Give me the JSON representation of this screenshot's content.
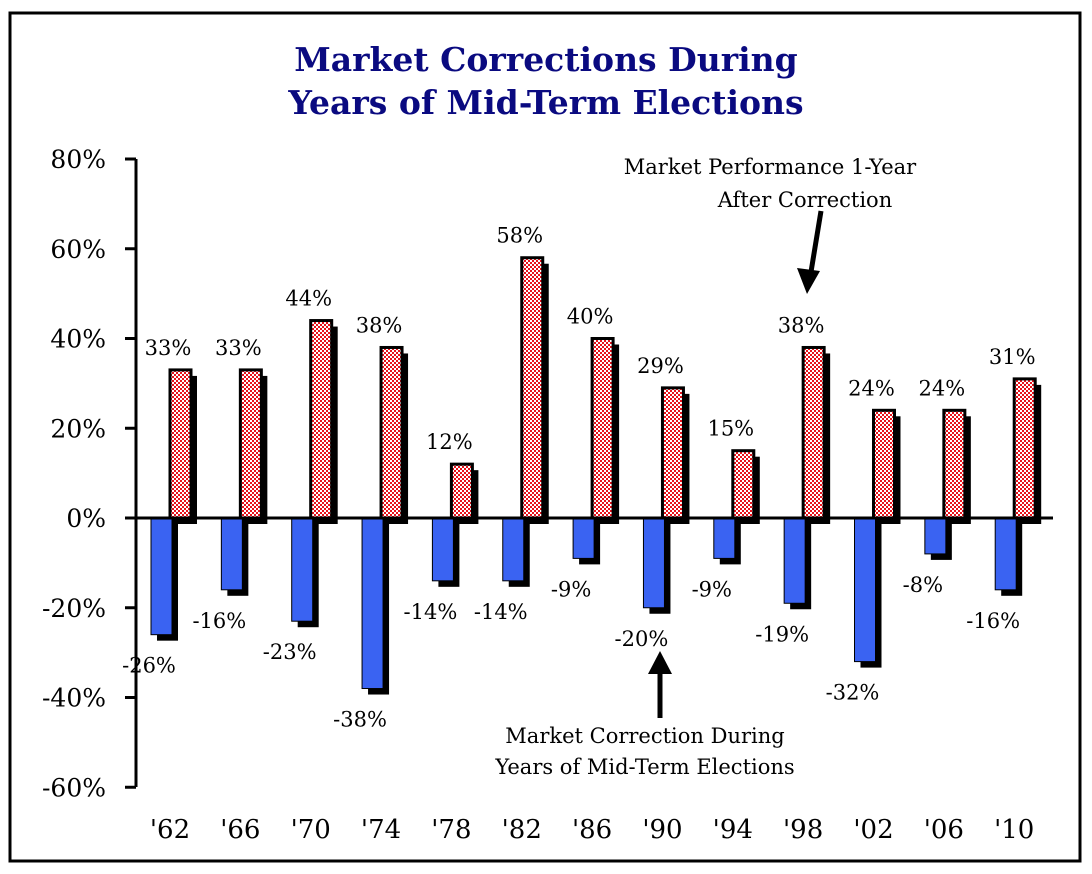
{
  "chart_data": {
    "type": "bar",
    "title": [
      "Market Corrections During",
      "Years of Mid-Term Elections"
    ],
    "xlabel": "",
    "ylabel": "",
    "ylim": [
      -60,
      80
    ],
    "yticks": [
      80,
      60,
      40,
      20,
      0,
      -20,
      -40,
      -60
    ],
    "ytick_labels": [
      "80%",
      "60%",
      "40%",
      "20%",
      "0%",
      "-20%",
      "-40%",
      "-60%"
    ],
    "categories": [
      "'62",
      "'66",
      "'70",
      "'74",
      "'78",
      "'82",
      "'86",
      "'90",
      "'94",
      "'98",
      "'02",
      "'06",
      "'10"
    ],
    "series": [
      {
        "name": "Market Correction During Years of Mid-Term Elections",
        "color": "#3a63f2",
        "values": [
          -26,
          -16,
          -23,
          -38,
          -14,
          -14,
          -9,
          -20,
          -9,
          -19,
          -32,
          -8,
          -16
        ],
        "labels": [
          "-26%",
          "-16%",
          "-23%",
          "-38%",
          "-14%",
          "-14%",
          "-9%",
          "-20%",
          "-9%",
          "-19%",
          "-32%",
          "-8%",
          "-16%"
        ]
      },
      {
        "name": "Market Performance 1-Year After Correction",
        "color": "#e8131b",
        "values": [
          33,
          33,
          44,
          38,
          12,
          58,
          40,
          29,
          15,
          38,
          24,
          24,
          31
        ],
        "labels": [
          "33%",
          "33%",
          "44%",
          "38%",
          "12%",
          "58%",
          "40%",
          "29%",
          "15%",
          "38%",
          "24%",
          "24%",
          "31%"
        ]
      }
    ],
    "annotations": {
      "top": [
        "Market Performance 1-Year",
        "After Correction"
      ],
      "bottom": [
        "Market Correction During",
        "Years of Mid-Term Elections"
      ]
    },
    "grid": false,
    "legend": "none"
  }
}
